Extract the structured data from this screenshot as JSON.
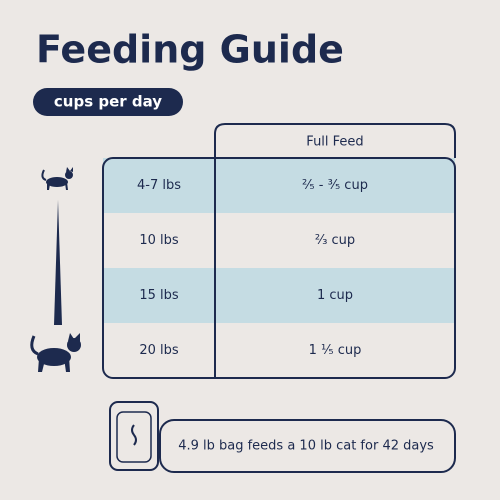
{
  "header": {
    "title": "Feeding Guide",
    "subtitle": "cups per day"
  },
  "table": {
    "column_header": "Full Feed",
    "rows": [
      [
        "4-7 lbs",
        "²⁄₅ - ³⁄₅ cup"
      ],
      [
        "10 lbs",
        "²⁄₃ cup"
      ],
      [
        "15 lbs",
        "1 cup"
      ],
      [
        "20 lbs",
        "1 ¹⁄₅ cup"
      ]
    ]
  },
  "footer": {
    "note": "4.9 lb bag feeds a 10 lb cat for 42 days"
  }
}
